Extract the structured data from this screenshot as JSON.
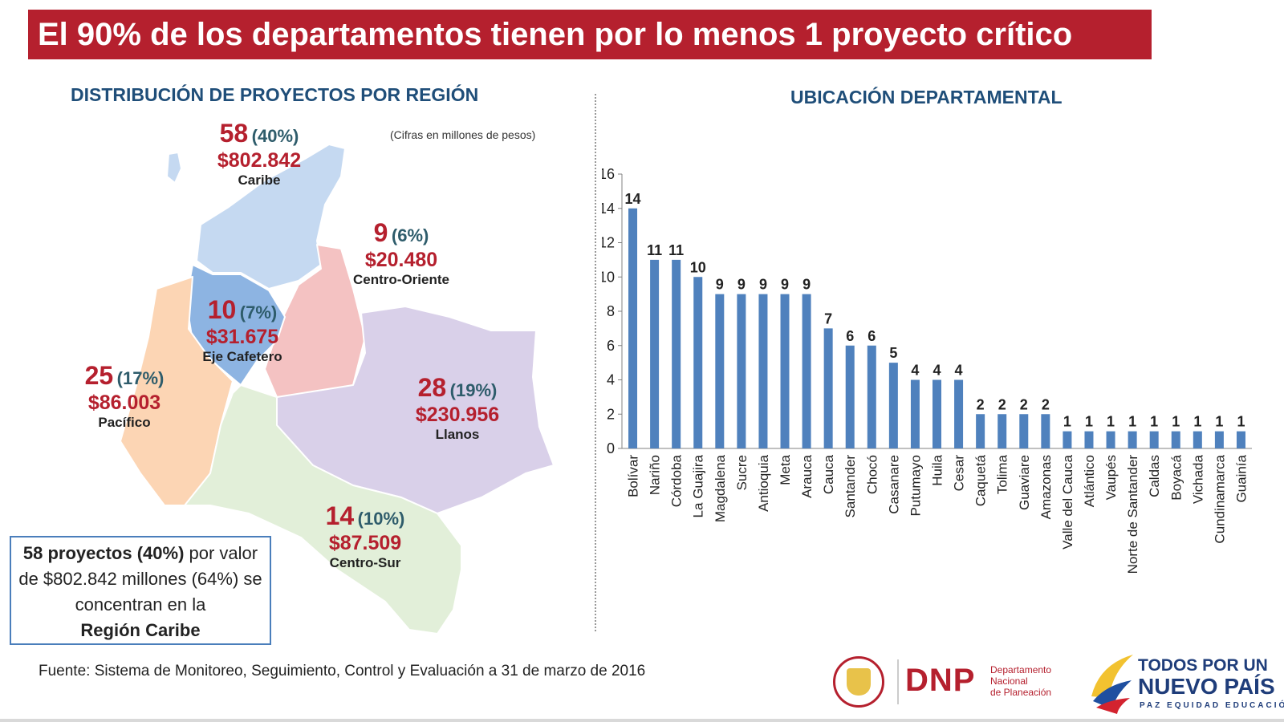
{
  "header": {
    "title": "El 90% de los departamentos tienen por lo menos 1 proyecto crítico"
  },
  "left": {
    "title": "DISTRIBUCIÓN DE PROYECTOS POR REGIÓN",
    "note": "(Cifras en millones de pesos)",
    "regions": [
      {
        "name": "Caribe",
        "count": "58",
        "pct": "(40%)",
        "value": "$802.842",
        "color": "#c5d9f1"
      },
      {
        "name": "Centro-Oriente",
        "count": "9",
        "pct": "(6%)",
        "value": "$20.480",
        "color": "#f4c2c2"
      },
      {
        "name": "Eje Cafetero",
        "count": "10",
        "pct": "(7%)",
        "value": "$31.675",
        "color": "#8db4e2"
      },
      {
        "name": "Pacífico",
        "count": "25",
        "pct": "(17%)",
        "value": "$86.003",
        "color": "#fcd5b4"
      },
      {
        "name": "Llanos",
        "count": "28",
        "pct": "(19%)",
        "value": "$230.956",
        "color": "#d9d0e9"
      },
      {
        "name": "Centro-Sur",
        "count": "14",
        "pct": "(10%)",
        "value": "$87.509",
        "color": "#e2efd9"
      }
    ],
    "callout": {
      "bold1": "58 proyectos (40%)",
      "text1": " por valor de $802.842 millones (64%) se concentran en la",
      "bold2": "Región Caribe"
    }
  },
  "right": {
    "title": "UBICACIÓN DEPARTAMENTAL"
  },
  "chart_data": {
    "type": "bar",
    "title": "UBICACIÓN DEPARTAMENTAL",
    "categories": [
      "Bolívar",
      "Nariño",
      "Córdoba",
      "La Guajira",
      "Magdalena",
      "Sucre",
      "Antioquia",
      "Meta",
      "Arauca",
      "Cauca",
      "Santander",
      "Chocó",
      "Casanare",
      "Putumayo",
      "Huila",
      "Cesar",
      "Caquetá",
      "Tolima",
      "Guaviare",
      "Amazonas",
      "Valle del Cauca",
      "Atlántico",
      "Vaupés",
      "Norte de Santander",
      "Caldas",
      "Boyacá",
      "Vichada",
      "Cundinamarca",
      "Guainía"
    ],
    "values": [
      14,
      11,
      11,
      10,
      9,
      9,
      9,
      9,
      9,
      7,
      6,
      6,
      5,
      4,
      4,
      4,
      2,
      2,
      2,
      2,
      1,
      1,
      1,
      1,
      1,
      1,
      1,
      1,
      1
    ],
    "yticks": [
      0,
      2,
      4,
      6,
      8,
      10,
      12,
      14,
      16
    ],
    "ylim": [
      0,
      16
    ],
    "bar_color": "#4f81bd",
    "data_labels": true,
    "grid": false
  },
  "source": "Fuente: Sistema de Monitoreo, Seguimiento, Control y Evaluación a 31 de marzo de 2016",
  "logos": {
    "dnp": {
      "letters": "DNP",
      "sub1": "Departamento",
      "sub2": "Nacional",
      "sub3": "de Planeación"
    },
    "tpn": {
      "line1": "TODOS POR UN",
      "line2": "NUEVO PAÍS",
      "line3": "PAZ EQUIDAD EDUCACIÓN"
    }
  }
}
